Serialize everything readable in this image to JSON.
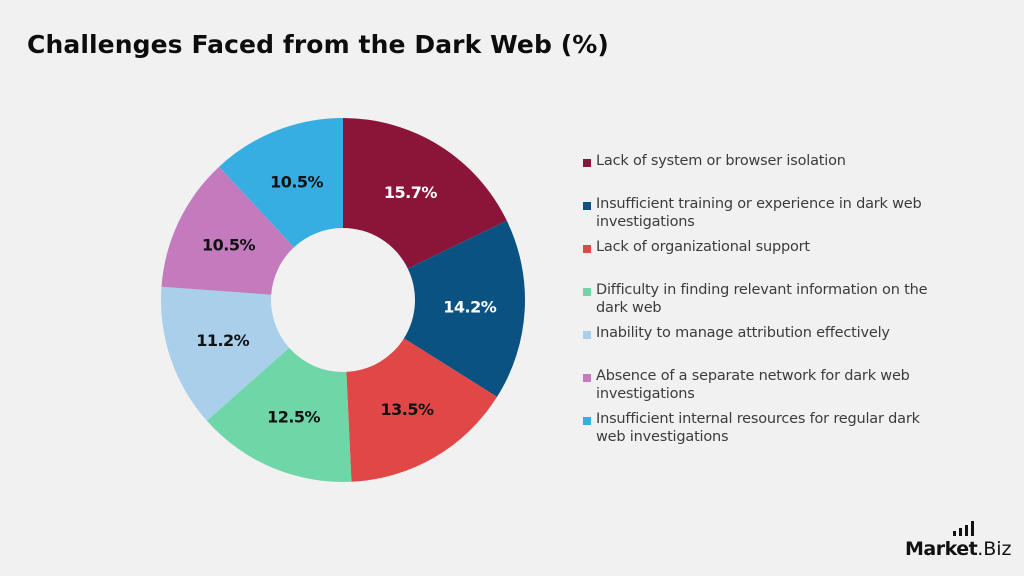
{
  "title": "Challenges Faced from the Dark Web (%)",
  "logo": {
    "brand": "Market",
    "tld": ".Biz"
  },
  "colors": {
    "background": "#f1f1f1",
    "legend_text": "#3c3c3c"
  },
  "chart_data": {
    "type": "pie",
    "variant": "donut",
    "title": "Challenges Faced from the Dark Web (%)",
    "unit": "%",
    "legend_position": "right",
    "categories": [
      "Lack of system or browser isolation",
      "Insufficient training or experience in dark web investigations",
      "Lack of organizational support",
      "Difficulty in finding relevant information on the dark web",
      "Inability to manage attribution effectively",
      "Absence of a separate network for dark web investigations",
      "Insufficient internal resources for regular dark web investigations"
    ],
    "values": [
      15.7,
      14.2,
      13.5,
      12.5,
      11.2,
      10.5,
      10.5
    ],
    "labels": [
      "15.7%",
      "14.2%",
      "13.5%",
      "12.5%",
      "11.2%",
      "10.5%",
      "10.5%"
    ],
    "colors": [
      "#8b1538",
      "#0a5282",
      "#e04848",
      "#6fd6a8",
      "#a9cfea",
      "#c37bbe",
      "#36aee2"
    ],
    "label_colors": [
      "#ffffff",
      "#ffffff",
      "#111111",
      "#111111",
      "#111111",
      "#111111",
      "#111111"
    ]
  },
  "legend": {
    "items": [
      {
        "label": "Lack of system or browser isolation",
        "color": "#8b1538"
      },
      {
        "label": "Insufficient training or experience in dark web investigations",
        "color": "#0a5282"
      },
      {
        "label": "Lack of organizational support",
        "color": "#e04848"
      },
      {
        "label": "Difficulty in finding relevant information on the dark web",
        "color": "#6fd6a8"
      },
      {
        "label": "Inability to manage attribution effectively",
        "color": "#a9cfea"
      },
      {
        "label": "Absence of a separate network for dark web investigations",
        "color": "#c37bbe"
      },
      {
        "label": "Insufficient internal resources for regular dark web investigations",
        "color": "#36aee2"
      }
    ]
  }
}
